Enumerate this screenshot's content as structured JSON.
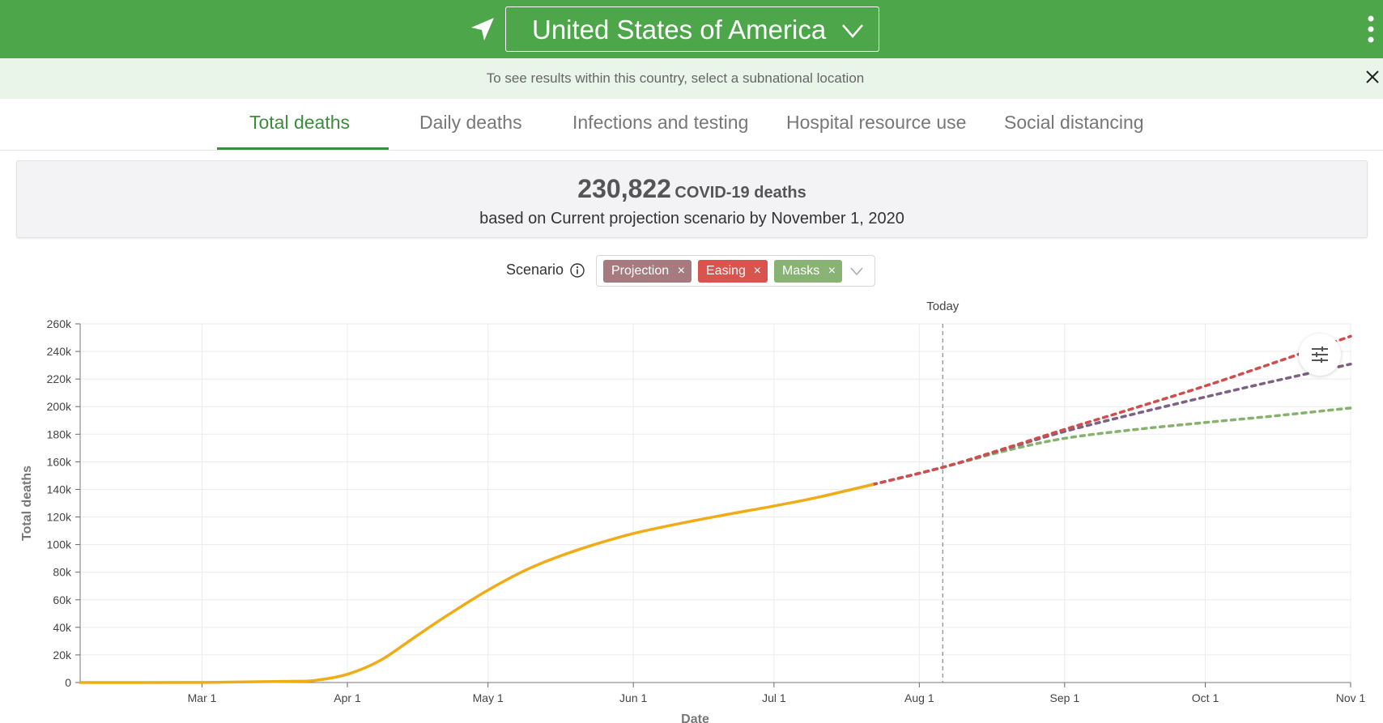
{
  "header": {
    "location_select_value": "United States of America"
  },
  "notice": {
    "text": "To see results within this country, select a subnational location"
  },
  "tabs": [
    {
      "label": "Total deaths",
      "active": true
    },
    {
      "label": "Daily deaths",
      "active": false
    },
    {
      "label": "Infections and testing",
      "active": false
    },
    {
      "label": "Hospital resource use",
      "active": false
    },
    {
      "label": "Social distancing",
      "active": false
    }
  ],
  "summary": {
    "count": "230,822",
    "count_label": "COVID-19 deaths",
    "subtitle": "based on Current projection scenario by November 1, 2020"
  },
  "scenario": {
    "label": "Scenario",
    "tags": [
      {
        "label": "Projection",
        "color": "#a57b7f"
      },
      {
        "label": "Easing",
        "color": "#d9534f"
      },
      {
        "label": "Masks",
        "color": "#88b374"
      }
    ]
  },
  "colors": {
    "header_green": "#4ea64a",
    "observed": "#f0ac16",
    "projection": "#7d6180",
    "easing": "#d24c4c",
    "masks": "#86b26e"
  },
  "chart_data": {
    "type": "line",
    "xlabel": "Date",
    "ylabel": "Total deaths",
    "ylim": [
      0,
      260000
    ],
    "yticks": [
      "0",
      "20k",
      "40k",
      "60k",
      "80k",
      "100k",
      "120k",
      "140k",
      "160k",
      "180k",
      "200k",
      "220k",
      "240k",
      "260k"
    ],
    "xticks": [
      "Mar 1",
      "Apr 1",
      "May 1",
      "Jun 1",
      "Jul 1",
      "Aug 1",
      "Sep 1",
      "Oct 1",
      "Nov 1"
    ],
    "today_label": "Today",
    "today_date": "2020-08-06",
    "grid": true,
    "series": [
      {
        "key": "observed",
        "style": "solid",
        "points": [
          [
            "2020-02-04",
            0
          ],
          [
            "2020-03-01",
            50
          ],
          [
            "2020-03-20",
            900
          ],
          [
            "2020-03-25",
            1500
          ],
          [
            "2020-04-01",
            6000
          ],
          [
            "2020-04-08",
            16000
          ],
          [
            "2020-04-15",
            32000
          ],
          [
            "2020-04-22",
            48000
          ],
          [
            "2020-05-01",
            67000
          ],
          [
            "2020-05-10",
            83000
          ],
          [
            "2020-05-20",
            96000
          ],
          [
            "2020-06-01",
            108000
          ],
          [
            "2020-06-15",
            118000
          ],
          [
            "2020-07-01",
            128000
          ],
          [
            "2020-07-10",
            134000
          ],
          [
            "2020-07-22",
            143500
          ]
        ]
      },
      {
        "key": "projection",
        "style": "dashed",
        "points": [
          [
            "2020-07-22",
            143500
          ],
          [
            "2020-08-06",
            156000
          ],
          [
            "2020-08-20",
            170000
          ],
          [
            "2020-09-01",
            182000
          ],
          [
            "2020-09-15",
            194000
          ],
          [
            "2020-10-01",
            207000
          ],
          [
            "2020-10-15",
            218000
          ],
          [
            "2020-11-01",
            230822
          ]
        ]
      },
      {
        "key": "easing",
        "style": "dashed",
        "points": [
          [
            "2020-07-22",
            143500
          ],
          [
            "2020-08-06",
            156000
          ],
          [
            "2020-08-20",
            170500
          ],
          [
            "2020-09-01",
            183500
          ],
          [
            "2020-09-15",
            198000
          ],
          [
            "2020-10-01",
            215000
          ],
          [
            "2020-10-15",
            231000
          ],
          [
            "2020-11-01",
            251000
          ]
        ]
      },
      {
        "key": "masks",
        "style": "dashed",
        "points": [
          [
            "2020-07-22",
            143500
          ],
          [
            "2020-08-06",
            156000
          ],
          [
            "2020-08-20",
            168500
          ],
          [
            "2020-09-01",
            177000
          ],
          [
            "2020-09-15",
            183000
          ],
          [
            "2020-10-01",
            188500
          ],
          [
            "2020-10-15",
            193000
          ],
          [
            "2020-11-01",
            199000
          ]
        ]
      }
    ]
  }
}
